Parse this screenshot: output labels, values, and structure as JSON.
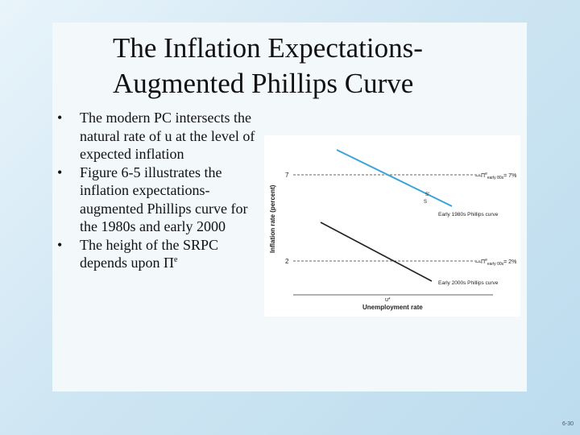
{
  "slide": {
    "title_line1": "The Inflation Expectations-",
    "title_line2": "Augmented Phillips Curve",
    "bullet_symbol": "•",
    "bullets": [
      "The modern PC intersects the natural rate of u at the level of expected inflation",
      "Figure 6-5 illustrates the inflation expectations-augmented Phillips curve for the 1980s and early 2000",
      "The height of the SRPC depends upon Π"
    ],
    "bullet3_superscript": "e",
    "page_number": "6-30"
  },
  "figure": {
    "y_axis_label": "Inflation rate (percent)",
    "x_axis_label": "Unemployment rate",
    "x_tick_label": "u*",
    "y_tick_high": "7",
    "y_tick_low": "2",
    "expectation_high_label": "—Π",
    "expectation_high_sup": "e",
    "expectation_high_sub": "early 80s",
    "expectation_high_value": "= 7%",
    "expectation_low_label": "—Π",
    "expectation_low_sup": "e",
    "expectation_low_sub": "early 00s",
    "expectation_low_value": "= 2%",
    "curve_1980s_label": "Early 1980s Phillips curve",
    "curve_2000s_label": "Early 2000s Phillips curve",
    "point_label_1": "S'",
    "point_label_2": "S",
    "colors": {
      "curve_1980s": "#3aa4d6",
      "curve_2000s": "#222222",
      "dashed": "#333333"
    }
  }
}
